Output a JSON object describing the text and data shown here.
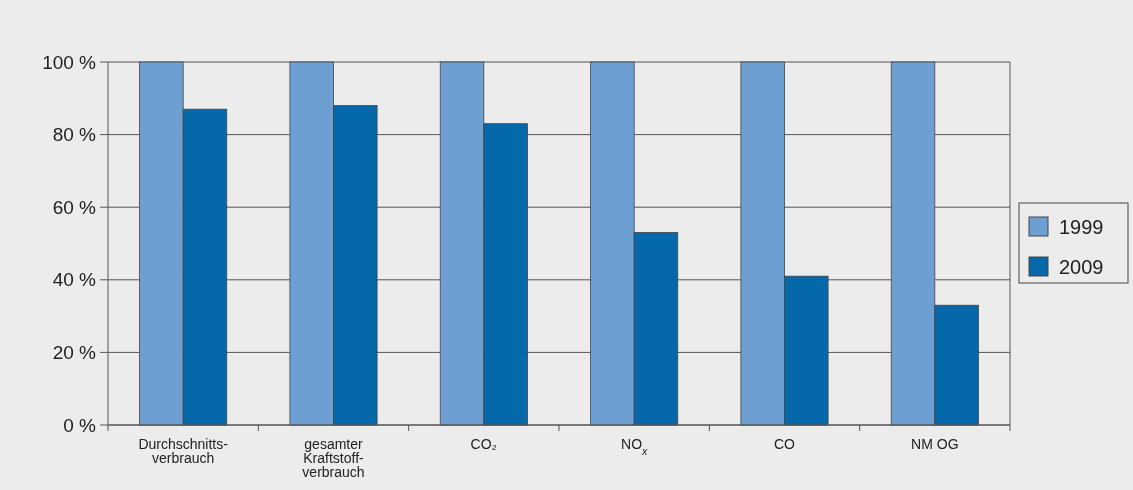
{
  "chart_data": {
    "type": "bar",
    "categories": [
      "Durchschnitts-\nverbrauch",
      "gesamter\nKraftstoff-\nverbrauch",
      "CO₂",
      "NO$_{x}$",
      "CO",
      "NM OG"
    ],
    "series": [
      {
        "name": "1999",
        "color": "#6e9fd2",
        "values": [
          100,
          100,
          100,
          100,
          100,
          100
        ]
      },
      {
        "name": "2009",
        "color": "#0568ab",
        "values": [
          87,
          88,
          83,
          53,
          41,
          33
        ]
      }
    ],
    "ylim": [
      0,
      100
    ],
    "yticks": [
      {
        "value": 0,
        "label": "0 %"
      },
      {
        "value": 20,
        "label": "20 %"
      },
      {
        "value": 40,
        "label": "40 %"
      },
      {
        "value": 60,
        "label": "60 %"
      },
      {
        "value": 80,
        "label": "80 %"
      },
      {
        "value": 100,
        "label": "100 %"
      }
    ],
    "grid": "y",
    "legend": "right"
  }
}
